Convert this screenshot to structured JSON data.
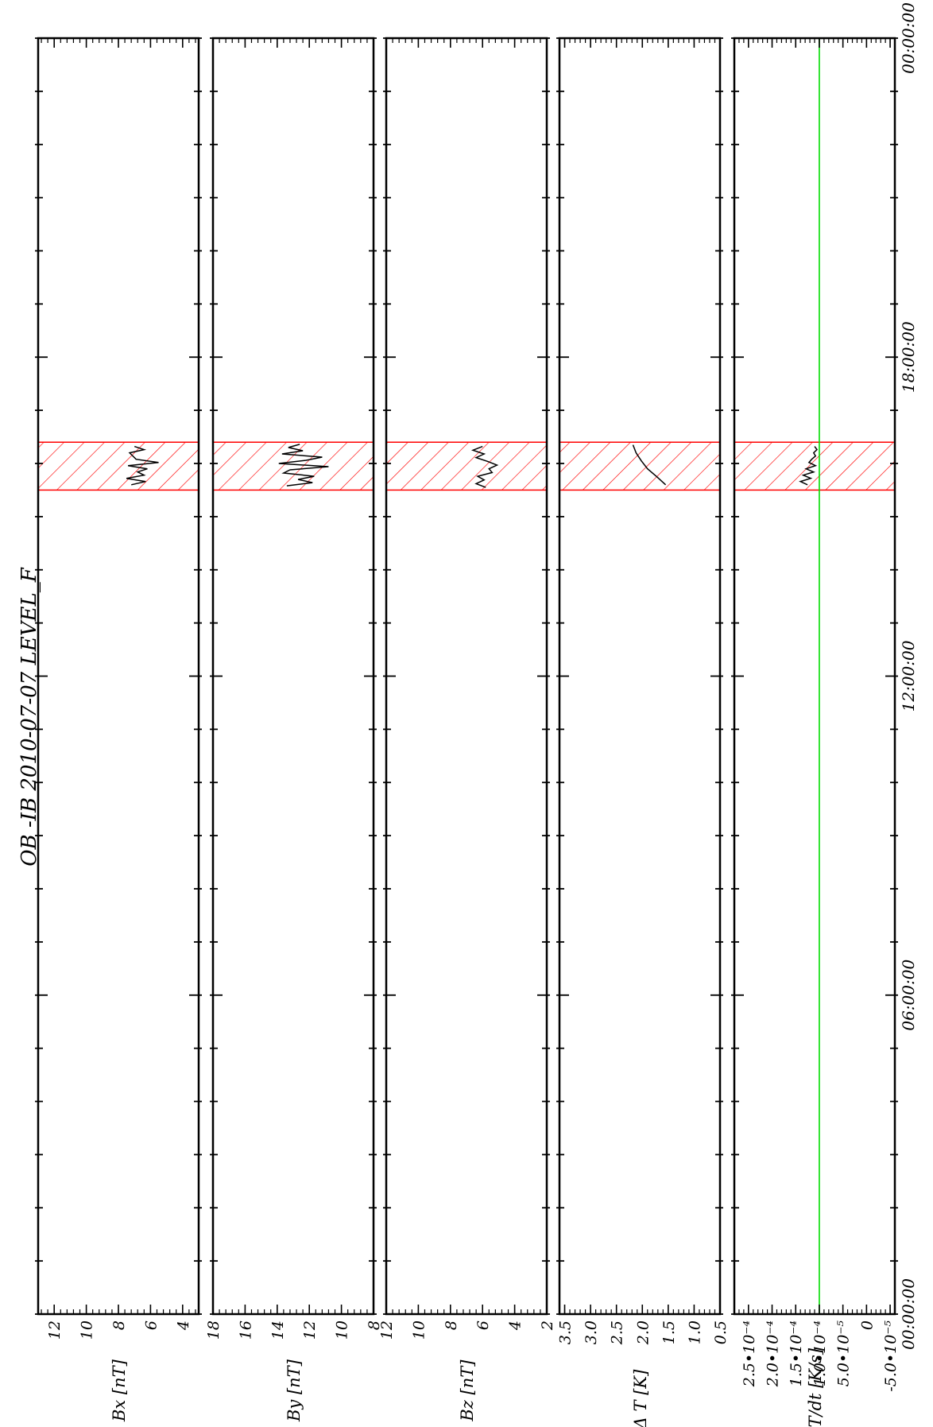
{
  "chart_data": {
    "type": "line",
    "title": "OB -IB  2010-07-07 LEVEL_F",
    "time_axis": {
      "tick_labels": [
        "00:00:00",
        "06:00:00",
        "12:00:00",
        "18:00:00",
        "00:00:00"
      ],
      "range_hours": [
        0,
        24
      ]
    },
    "highlight": {
      "start_hours": 15.5,
      "end_hours": 16.4,
      "color": "#ff0000",
      "pattern": "hatch"
    },
    "panels": [
      {
        "ylabel": "Δ Bx [nT]",
        "ylim": [
          3,
          13
        ],
        "ticks": [
          12,
          10,
          8,
          6,
          4
        ],
        "tick_labels": [
          "12",
          "10",
          "8",
          "6",
          "4"
        ],
        "series": [
          {
            "color": "#000000",
            "x": [
              15.6,
              15.66,
              15.72,
              15.78,
              15.84,
              15.9,
              15.96,
              16.02,
              16.08,
              16.14,
              16.2,
              16.26,
              16.32
            ],
            "values": [
              7.2,
              6.3,
              7.5,
              6.4,
              6.8,
              6.2,
              7.4,
              5.5,
              6.9,
              7.1,
              7.3,
              6.4,
              7.0
            ]
          }
        ]
      },
      {
        "ylabel": "Δ By [nT]",
        "ylim": [
          8,
          18
        ],
        "ticks": [
          18,
          16,
          14,
          12,
          10,
          8
        ],
        "tick_labels": [
          "18",
          "16",
          "14",
          "12",
          "10",
          "8"
        ],
        "series": [
          {
            "color": "#000000",
            "x": [
              15.58,
              15.64,
              15.7,
              15.76,
              15.82,
              15.88,
              15.94,
              16.0,
              16.06,
              16.12,
              16.18,
              16.24,
              16.3,
              16.36
            ],
            "values": [
              13.4,
              11.8,
              12.7,
              11.7,
              13.6,
              13.2,
              10.8,
              13.9,
              12.2,
              11.2,
              13.7,
              12.4,
              13.3,
              12.6
            ]
          }
        ]
      },
      {
        "ylabel": "Δ Bz [nT]",
        "ylim": [
          2,
          12
        ],
        "ticks": [
          12,
          10,
          8,
          6,
          4,
          2
        ],
        "tick_labels": [
          "12",
          "10",
          "8",
          "6",
          "4",
          "2"
        ],
        "series": [
          {
            "color": "#000000",
            "x": [
              15.55,
              15.62,
              15.69,
              15.76,
              15.83,
              15.9,
              15.97,
              16.04,
              16.11,
              16.18,
              16.25,
              16.32
            ],
            "values": [
              5.8,
              6.4,
              5.9,
              6.3,
              5.4,
              5.6,
              5.1,
              5.7,
              6.4,
              5.9,
              6.6,
              6.0
            ]
          }
        ]
      },
      {
        "ylabel": "Δ T [K]",
        "ylim": [
          0.5,
          3.6
        ],
        "ticks": [
          3.5,
          3.0,
          2.5,
          2.0,
          1.5,
          1.0,
          0.5
        ],
        "tick_labels": [
          "3.5",
          "3.0",
          "2.5",
          "2.0",
          "1.5",
          "1.0",
          "0.5"
        ],
        "series": [
          {
            "color": "#000000",
            "x": [
              15.6,
              15.75,
              15.9,
              16.05,
              16.2,
              16.35
            ],
            "values": [
              1.55,
              1.72,
              1.9,
              2.02,
              2.12,
              2.18
            ]
          }
        ]
      },
      {
        "ylabel": "dΔT/dt [K/s]",
        "ylim": [
          -6e-05,
          0.00028
        ],
        "ticks": [
          0.00025,
          0.0002,
          0.00015,
          0.0001,
          5e-05,
          0,
          -5e-05
        ],
        "tick_labels": [
          "2.5•10⁻⁴",
          "2.0•10⁻⁴",
          "1.5•10⁻⁴",
          "1.0•10⁻⁴",
          "5.0•10⁻⁵",
          "0",
          "-5.0•10⁻⁵"
        ],
        "reference_line": {
          "value": 0.0001,
          "color": "#00dd00"
        },
        "series": [
          {
            "color": "#000000",
            "x": [
              15.6,
              15.66,
              15.72,
              15.78,
              15.84,
              15.9,
              15.96,
              16.02,
              16.08,
              16.14,
              16.2,
              16.26,
              16.32
            ],
            "values": [
              0.000125,
              0.00014,
              0.000118,
              0.000134,
              0.000112,
              0.000128,
              0.000108,
              0.000122,
              0.000116,
              0.000108,
              0.000112,
              0.000105,
              0.00011
            ]
          }
        ]
      }
    ]
  }
}
